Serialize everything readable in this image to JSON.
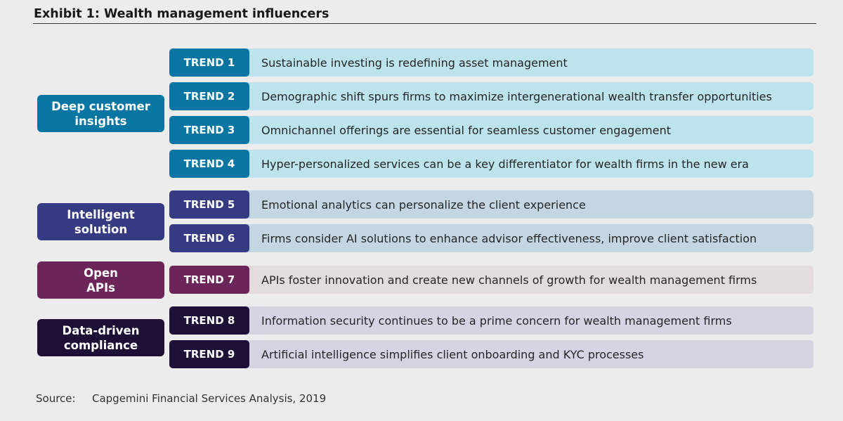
{
  "exhibit": {
    "title": "Exhibit 1: Wealth management influencers"
  },
  "groups": [
    {
      "label_lines": [
        "Deep customer",
        "insights"
      ],
      "color": "#0876a3"
    },
    {
      "label_lines": [
        "Intelligent",
        "solution"
      ],
      "color": "#363a82"
    },
    {
      "label_lines": [
        "Open",
        "APIs"
      ],
      "color": "#6b2559"
    },
    {
      "label_lines": [
        "Data-driven",
        "compliance"
      ],
      "color": "#1e0f36"
    }
  ],
  "trends": [
    {
      "tag": "TREND 1",
      "text": "Sustainable investing is redefining asset management",
      "tag_color": "#0876a3",
      "bg_color": "#bde3ec"
    },
    {
      "tag": "TREND 2",
      "text": "Demographic shift spurs firms to maximize intergenerational wealth transfer opportunities",
      "tag_color": "#0876a3",
      "bg_color": "#bde3ec"
    },
    {
      "tag": "TREND 3",
      "text": "Omnichannel offerings are essential for seamless customer engagement",
      "tag_color": "#0876a3",
      "bg_color": "#bde3ec"
    },
    {
      "tag": "TREND 4",
      "text": "Hyper-personalized services can be a key differentiator for wealth firms in the new era",
      "tag_color": "#0876a3",
      "bg_color": "#bde3ec"
    },
    {
      "tag": "TREND 5",
      "text": "Emotional analytics can personalize the client experience",
      "tag_color": "#363a82",
      "bg_color": "#c4d6e1"
    },
    {
      "tag": "TREND 6",
      "text": "Firms consider AI solutions to enhance advisor effectiveness, improve client satisfaction",
      "tag_color": "#363a82",
      "bg_color": "#c4d6e1"
    },
    {
      "tag": "TREND 7",
      "text": "APIs foster innovation and create new channels of growth for wealth management firms",
      "tag_color": "#6b2559",
      "bg_color": "#e2dcdf"
    },
    {
      "tag": "TREND 8",
      "text": "Information security continues to be a prime concern for wealth management firms",
      "tag_color": "#1e0f36",
      "bg_color": "#d6d3e3"
    },
    {
      "tag": "TREND 9",
      "text": "Artificial intelligence simplifies client onboarding and KYC processes",
      "tag_color": "#1e0f36",
      "bg_color": "#d6d3e3"
    }
  ],
  "source": {
    "label": "Source:",
    "text": "Capgemini Financial Services Analysis, 2019"
  }
}
